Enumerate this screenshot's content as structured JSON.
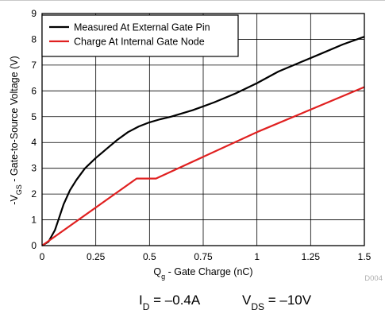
{
  "chart_data": {
    "type": "line",
    "xlabel": {
      "main": "Q",
      "sub": "g",
      "rest": " - Gate Charge (nC)"
    },
    "ylabel": {
      "pre": "-V",
      "sub": "GS",
      "rest": " - Gate-to-Source Voltage (V)"
    },
    "xlim": [
      0,
      1.5
    ],
    "ylim": [
      0,
      9
    ],
    "xticks": [
      0,
      0.25,
      0.5,
      0.75,
      1,
      1.25,
      1.5
    ],
    "xtick_labels": [
      "0",
      "0.25",
      "0.5",
      "0.75",
      "1",
      "1.25",
      "1.5"
    ],
    "yticks": [
      0,
      1,
      2,
      3,
      4,
      5,
      6,
      7,
      8,
      9
    ],
    "ytick_labels": [
      "0",
      "1",
      "2",
      "3",
      "4",
      "5",
      "6",
      "7",
      "8",
      "9"
    ],
    "grid": true,
    "legend_position": "top-left",
    "series": [
      {
        "name": "Measured At External Gate Pin",
        "color": "#000000",
        "x": [
          0,
          0.03,
          0.06,
          0.08,
          0.1,
          0.13,
          0.16,
          0.2,
          0.25,
          0.3,
          0.35,
          0.4,
          0.45,
          0.5,
          0.55,
          0.6,
          0.7,
          0.8,
          0.9,
          1.0,
          1.1,
          1.2,
          1.3,
          1.4,
          1.5
        ],
        "y": [
          0,
          0.15,
          0.6,
          1.1,
          1.6,
          2.15,
          2.55,
          3.0,
          3.4,
          3.75,
          4.1,
          4.4,
          4.62,
          4.78,
          4.9,
          5.0,
          5.25,
          5.55,
          5.9,
          6.3,
          6.75,
          7.1,
          7.45,
          7.8,
          8.1
        ]
      },
      {
        "name": "Charge At Internal Gate Node",
        "color": "#e02020",
        "x": [
          0,
          0.44,
          0.53,
          1.0,
          1.5
        ],
        "y": [
          0,
          2.6,
          2.6,
          4.4,
          6.15
        ]
      }
    ]
  },
  "footer": {
    "figure_id": "D004",
    "conditions": [
      {
        "main": "I",
        "sub": "D",
        "rest": " = –0.4A"
      },
      {
        "main": "V",
        "sub": "DS",
        "rest": " = –10V"
      }
    ]
  }
}
